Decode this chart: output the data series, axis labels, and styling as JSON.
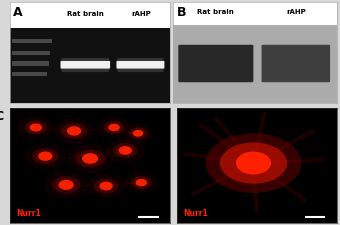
{
  "panel_A_label": "A",
  "panel_B_label": "B",
  "panel_C_label": "C",
  "col_labels_AB": [
    "Rat brain",
    "rAHP"
  ],
  "nurr1_label": "Nurr1",
  "gel_bg": "#111111",
  "gel_band_bright": "#f0f0f0",
  "gel_band_dim": "#2a2a2a",
  "gel_ladder_color": "#606060",
  "wb_bg": "#aaaaaa",
  "wb_band_color": "#111111",
  "wb_mid_color": "#888888",
  "fluo_bg": "#000000",
  "cell_red_bright": "#ff2200",
  "cell_red_mid": "#cc1100",
  "cell_red_dim": "#660000",
  "cell_red_faint": "#220000",
  "label_color": "#ff2200",
  "scale_bar_color": "#ffffff",
  "outer_bg": "#d8d8d8",
  "panel_bg": "#ffffff"
}
